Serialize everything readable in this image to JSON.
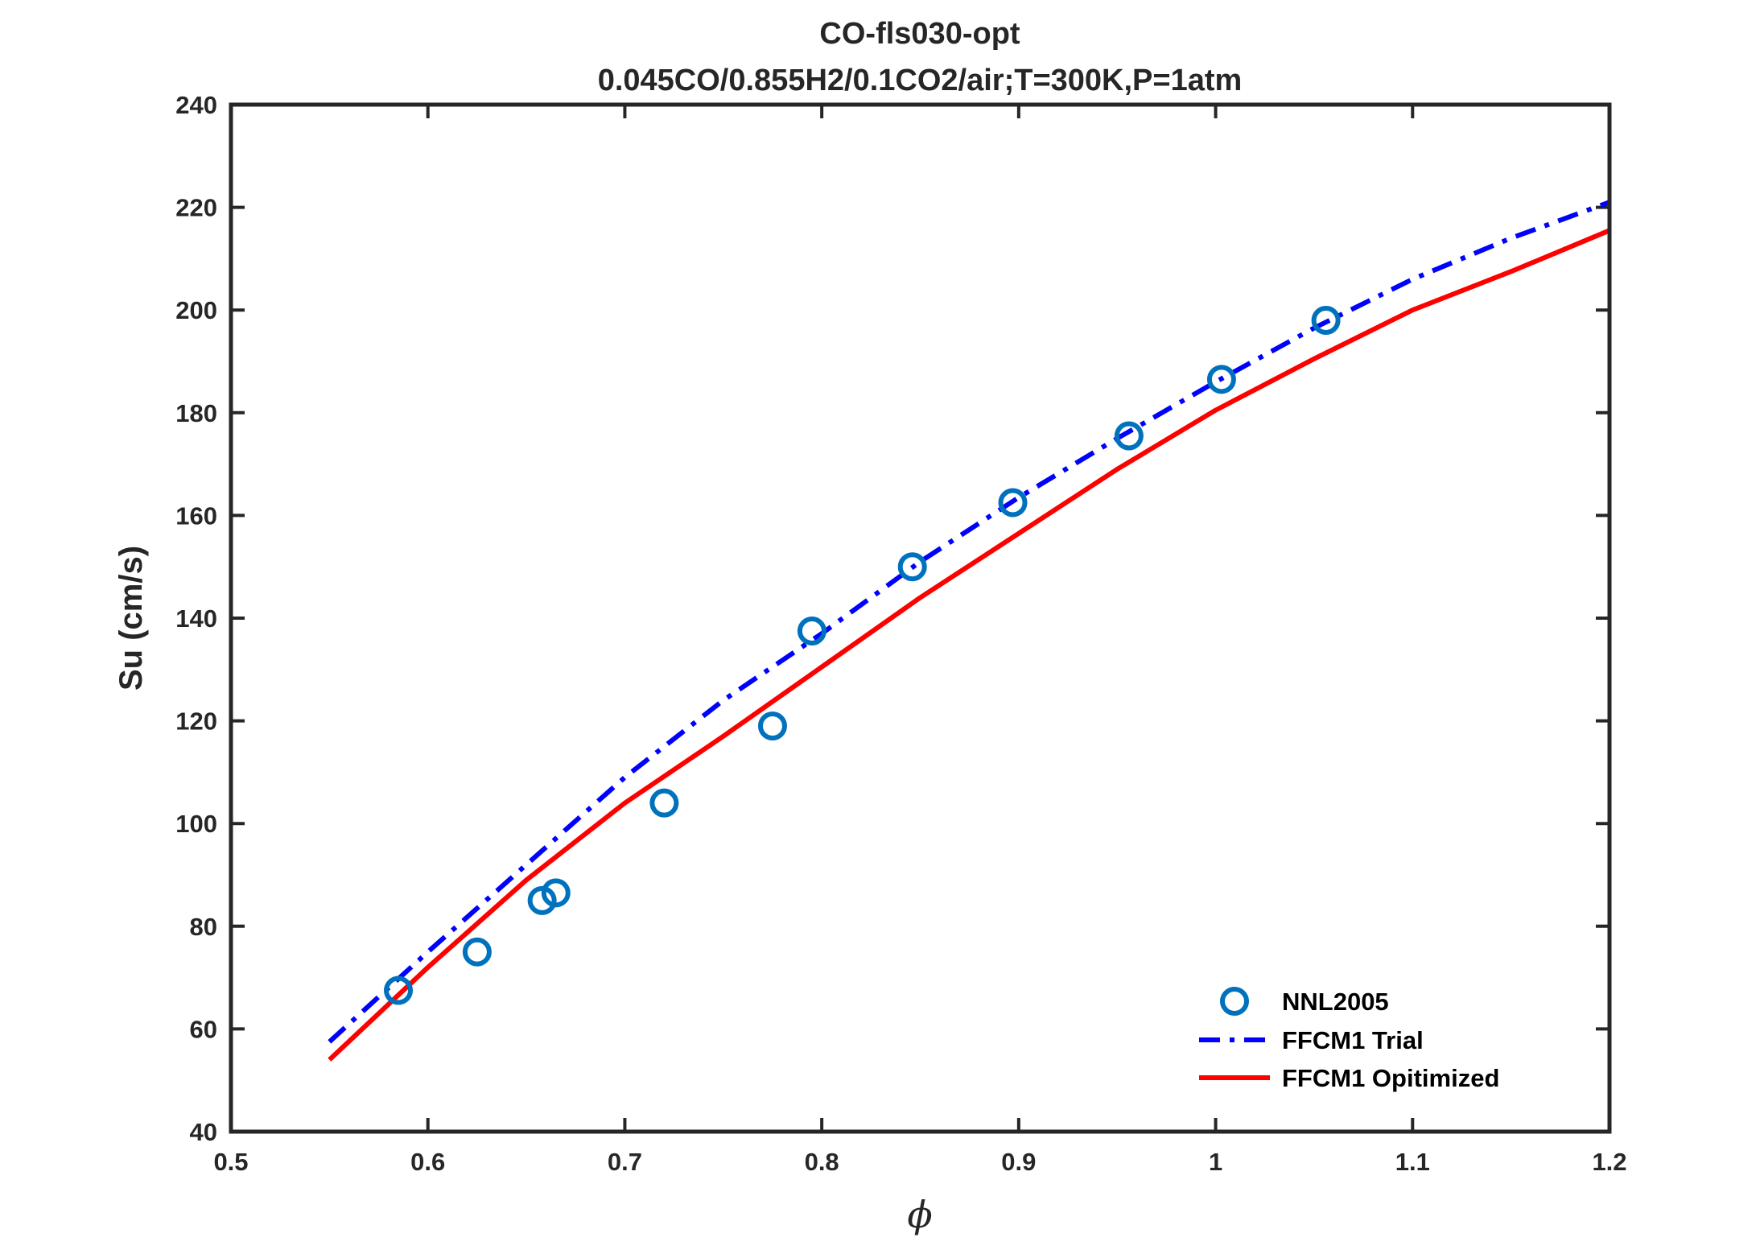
{
  "chart_data": {
    "type": "line",
    "title": "CO-fls030-opt",
    "subtitle": "0.045CO/0.855H2/0.1CO2/air;T=300K,P=1atm",
    "xlabel": "ϕ",
    "ylabel": "Su (cm/s)",
    "xlim": [
      0.5,
      1.2
    ],
    "ylim": [
      40,
      240
    ],
    "xticks": [
      0.5,
      0.6,
      0.7,
      0.8,
      0.9,
      1.0,
      1.1,
      1.2
    ],
    "xtick_labels": [
      "0.5",
      "0.6",
      "0.7",
      "0.8",
      "0.9",
      "1",
      "1.1",
      "1.2"
    ],
    "yticks": [
      40,
      60,
      80,
      100,
      120,
      140,
      160,
      180,
      200,
      220,
      240
    ],
    "ytick_labels": [
      "40",
      "60",
      "80",
      "100",
      "120",
      "140",
      "160",
      "180",
      "200",
      "220",
      "240"
    ],
    "grid": false,
    "legend_position": "bottom-right",
    "series": [
      {
        "name": "NNL2005",
        "kind": "scatter",
        "marker": "circle",
        "color": "#0072BD",
        "x": [
          0.585,
          0.625,
          0.658,
          0.665,
          0.72,
          0.775,
          0.795,
          0.846,
          0.897,
          0.956,
          1.003,
          1.056
        ],
        "y": [
          67.5,
          75,
          85,
          86.5,
          104,
          119,
          137.5,
          150,
          162.5,
          175.5,
          186.5,
          198
        ]
      },
      {
        "name": "FFCM1 Trial",
        "kind": "line",
        "style": "dashdot",
        "color": "#0000FF",
        "x": [
          0.55,
          0.6,
          0.65,
          0.7,
          0.75,
          0.8,
          0.85,
          0.9,
          0.95,
          1.0,
          1.05,
          1.1,
          1.15,
          1.2
        ],
        "y": [
          57.5,
          75,
          92,
          109,
          124,
          137,
          151,
          163.5,
          175,
          186,
          196.5,
          206,
          214,
          221
        ]
      },
      {
        "name": "FFCM1 Opitimized",
        "kind": "line",
        "style": "solid",
        "color": "#FF0000",
        "x": [
          0.55,
          0.6,
          0.65,
          0.7,
          0.75,
          0.8,
          0.85,
          0.9,
          0.95,
          1.0,
          1.05,
          1.1,
          1.15,
          1.2
        ],
        "y": [
          54,
          72,
          89,
          104,
          117,
          130.5,
          144,
          156.5,
          169,
          180.5,
          190.5,
          200,
          207.5,
          215.5
        ]
      }
    ]
  }
}
